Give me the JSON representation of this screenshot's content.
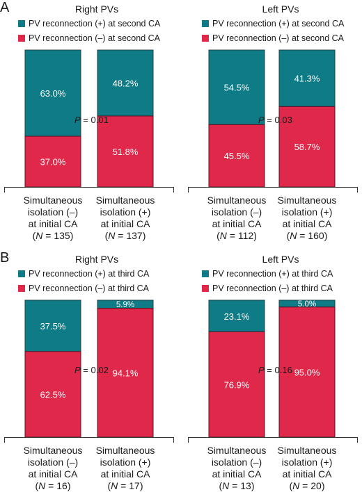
{
  "colors": {
    "plus": "#0f7b86",
    "minus": "#e0294a",
    "axis": "#333333",
    "bar_text": "#ffffff"
  },
  "panels": [
    {
      "letter": "A",
      "legend": {
        "plus": "PV reconnection (+) at second CA",
        "minus": "PV reconnection (–) at second CA"
      },
      "groups": [
        {
          "title": "Right PVs",
          "p_value": "0.01",
          "bars": [
            {
              "label_lines": [
                "Simultaneous",
                "isolation (–)",
                "at initial CA"
              ],
              "n": "135"
            },
            {
              "label_lines": [
                "Simultaneous",
                "isolation (+)",
                "at initial CA"
              ],
              "n": "137"
            }
          ]
        },
        {
          "title": "Left PVs",
          "p_value": "0.03",
          "bars": [
            {
              "label_lines": [
                "Simultaneous",
                "isolation (–)",
                "at initial CA"
              ],
              "n": "112"
            },
            {
              "label_lines": [
                "Simultaneous",
                "isolation (+)",
                "at initial CA"
              ],
              "n": "160"
            }
          ]
        }
      ]
    },
    {
      "letter": "B",
      "legend": {
        "plus": "PV reconnection (+) at third CA",
        "minus": "PV reconnection (–) at third CA"
      },
      "groups": [
        {
          "title": "Right PVs",
          "p_value": "0.02",
          "bars": [
            {
              "label_lines": [
                "Simultaneous",
                "isolation (–)",
                "at initial CA"
              ],
              "n": "16"
            },
            {
              "label_lines": [
                "Simultaneous",
                "isolation (+)",
                "at initial CA"
              ],
              "n": "17"
            }
          ]
        },
        {
          "title": "Left PVs",
          "p_value": "0.16",
          "bars": [
            {
              "label_lines": [
                "Simultaneous",
                "isolation (–)",
                "at initial CA"
              ],
              "n": "13"
            },
            {
              "label_lines": [
                "Simultaneous",
                "isolation (+)",
                "at initial CA"
              ],
              "n": "20"
            }
          ]
        }
      ]
    }
  ],
  "chart_data": [
    {
      "type": "bar",
      "stacked": true,
      "title": "Right PVs",
      "categories": [
        "Simultaneous isolation (–) at initial CA (N = 135)",
        "Simultaneous isolation (+) at initial CA (N = 137)"
      ],
      "series": [
        {
          "name": "PV reconnection (–) at second CA",
          "values": [
            37.0,
            51.8
          ]
        },
        {
          "name": "PV reconnection (+) at second CA",
          "values": [
            63.0,
            48.2
          ]
        }
      ],
      "ylim": [
        0,
        100
      ]
    },
    {
      "type": "bar",
      "stacked": true,
      "title": "Left PVs",
      "categories": [
        "Simultaneous isolation (–) at initial CA (N = 112)",
        "Simultaneous isolation (+) at initial CA (N = 160)"
      ],
      "series": [
        {
          "name": "PV reconnection (–) at second CA",
          "values": [
            45.5,
            58.7
          ]
        },
        {
          "name": "PV reconnection (+) at second CA",
          "values": [
            54.5,
            41.3
          ]
        }
      ],
      "ylim": [
        0,
        100
      ]
    },
    {
      "type": "bar",
      "stacked": true,
      "title": "Right PVs",
      "categories": [
        "Simultaneous isolation (–) at initial CA (N = 16)",
        "Simultaneous isolation (+) at initial CA (N = 17)"
      ],
      "series": [
        {
          "name": "PV reconnection (–) at third CA",
          "values": [
            62.5,
            94.1
          ]
        },
        {
          "name": "PV reconnection (+) at third CA",
          "values": [
            37.5,
            5.9
          ]
        }
      ],
      "ylim": [
        0,
        100
      ]
    },
    {
      "type": "bar",
      "stacked": true,
      "title": "Left PVs",
      "categories": [
        "Simultaneous isolation (–) at initial CA (N = 13)",
        "Simultaneous isolation (+) at initial CA (N = 20)"
      ],
      "series": [
        {
          "name": "PV reconnection (–) at third CA",
          "values": [
            76.9,
            95.0
          ]
        },
        {
          "name": "PV reconnection (+) at third CA",
          "values": [
            23.1,
            5.0
          ]
        }
      ],
      "ylim": [
        0,
        100
      ]
    }
  ]
}
